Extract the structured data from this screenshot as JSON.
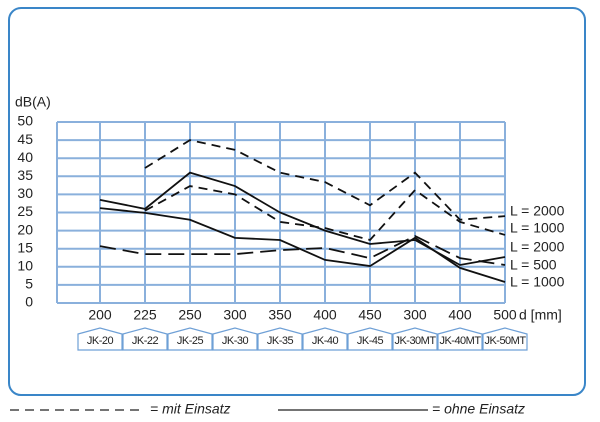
{
  "chart_data": {
    "type": "line",
    "y_label": "dB(A)",
    "x_label": "d [mm]",
    "categories": [
      "200",
      "225",
      "250",
      "300",
      "350",
      "400",
      "450",
      "300",
      "400",
      "500"
    ],
    "products": [
      "JK-20",
      "JK-22",
      "JK-25",
      "JK-30",
      "JK-35",
      "JK-40",
      "JK-45",
      "JK-30MT",
      "JK-40MT",
      "JK-50MT"
    ],
    "ylim": [
      0,
      50
    ],
    "yticks": [
      0,
      5,
      10,
      15,
      20,
      25,
      30,
      35,
      40,
      45,
      50
    ],
    "grid": true,
    "grid_color": "#8ab0dc",
    "series": [
      {
        "name": "L = 2000",
        "color": "#111111",
        "style": "dashed",
        "values": [
          null,
          37.3,
          45,
          42.3,
          36,
          33.4,
          27,
          36,
          23,
          24
        ]
      },
      {
        "name": "L = 1000",
        "color": "#111111",
        "style": "dashed",
        "values": [
          null,
          25.5,
          32.3,
          30,
          22.4,
          20.7,
          17.4,
          31.2,
          22.4,
          18.8
        ]
      },
      {
        "name": "L = 2000",
        "color": "#111111",
        "style": "solid",
        "values": [
          28.5,
          26,
          36,
          32.3,
          25,
          20,
          16.3,
          17.4,
          10.5,
          12.7
        ]
      },
      {
        "name": "L = 500",
        "color": "#111111",
        "style": "longdash",
        "values": [
          15.7,
          13.5,
          13.5,
          13.5,
          14.6,
          15.2,
          12.4,
          18.5,
          12.4,
          10.5
        ]
      },
      {
        "name": "L = 1000",
        "color": "#111111",
        "style": "solid",
        "values": [
          26.2,
          24.9,
          23,
          18,
          17.4,
          11.9,
          10.2,
          18,
          9.7,
          5.8
        ]
      }
    ],
    "legend": [
      {
        "label": "= mit Einsatz",
        "style": "dashed"
      },
      {
        "label": "= ohne Einsatz",
        "style": "solid"
      }
    ]
  }
}
